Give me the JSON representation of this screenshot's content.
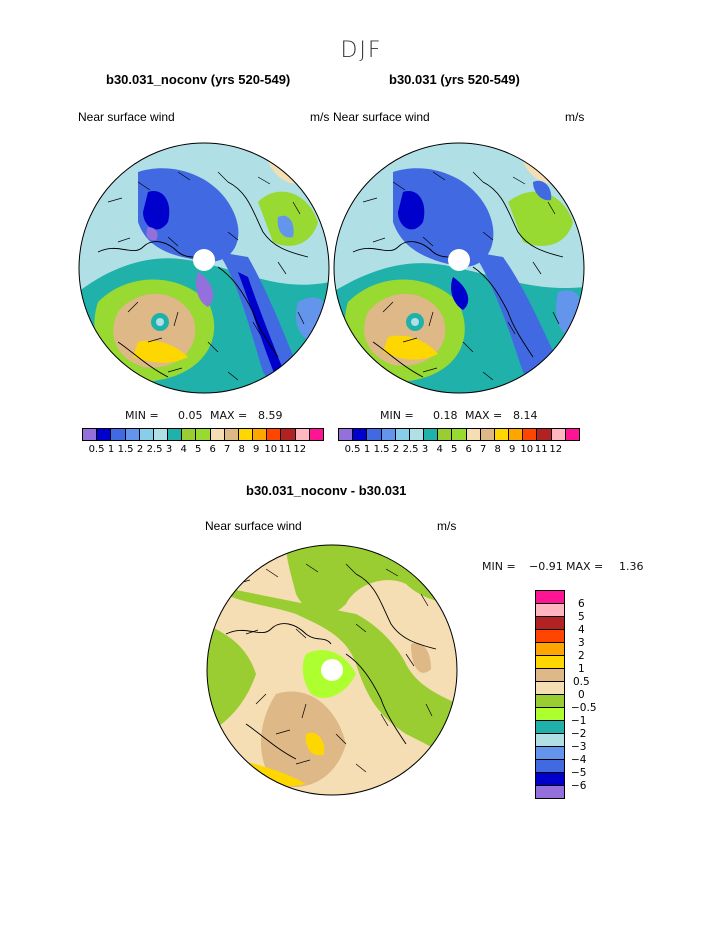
{
  "season": "DJF",
  "colors": {
    "scale_main": [
      "#9370db",
      "#0000cd",
      "#4169e1",
      "#6495ed",
      "#87ceeb",
      "#b0e0e6",
      "#20b2aa",
      "#9acd32",
      "#98d932",
      "#f5deb3",
      "#deb887",
      "#ffd700",
      "#ffa500",
      "#ff4500",
      "#b22222",
      "#ffb6c1",
      "#ff1493"
    ],
    "scale_diff": [
      "#ff1493",
      "#ffb6c1",
      "#b22222",
      "#ff4500",
      "#ffa500",
      "#ffd700",
      "#deb887",
      "#f5deb3",
      "#9acd32",
      "#adff2f",
      "#20b2aa",
      "#b0e0e6",
      "#6495ed",
      "#4169e1",
      "#0000cd",
      "#9370db"
    ]
  },
  "panels": [
    {
      "title": "b30.031_noconv (yrs 520-549)",
      "variable_label": "Near surface wind",
      "units": "m/s",
      "min_label": "MIN =",
      "min_value": "0.05",
      "max_label": "MAX =",
      "max_value": "8.59",
      "colorbar_ticks": [
        "0.5",
        "1",
        "1.5",
        "2",
        "2.5",
        "3",
        "4",
        "5",
        "6",
        "7",
        "8",
        "9",
        "10",
        "11",
        "12"
      ]
    },
    {
      "title": "b30.031 (yrs 520-549)",
      "variable_label": "Near surface wind",
      "units": "m/s",
      "min_label": "MIN =",
      "min_value": "0.18",
      "max_label": "MAX =",
      "max_value": "8.14",
      "colorbar_ticks": [
        "0.5",
        "1",
        "1.5",
        "2",
        "2.5",
        "3",
        "4",
        "5",
        "6",
        "7",
        "8",
        "9",
        "10",
        "11",
        "12"
      ]
    },
    {
      "title": "b30.031_noconv - b30.031",
      "variable_label": "Near surface wind",
      "units": "m/s",
      "min_label": "MIN =",
      "min_value": "−0.91",
      "max_label": "MAX =",
      "max_value": "1.36",
      "colorbar_ticks": [
        "6",
        "5",
        "4",
        "3",
        "2",
        "1",
        "0.5",
        "0",
        "−0.5",
        "−1",
        "−2",
        "−3",
        "−4",
        "−5",
        "−6"
      ]
    }
  ]
}
